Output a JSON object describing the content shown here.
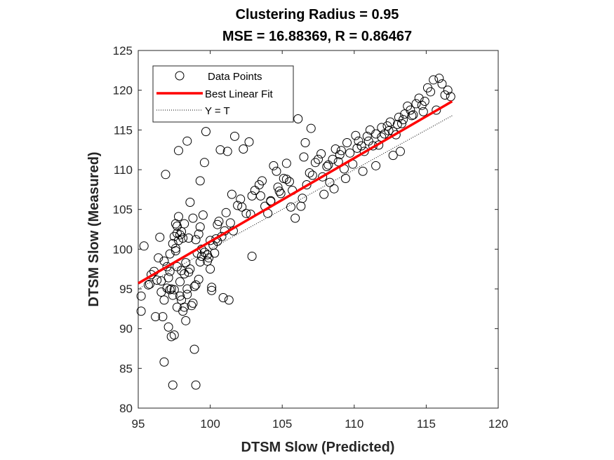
{
  "chart_data": {
    "type": "scatter",
    "title": "Clustering Radius = 0.95",
    "subtitle": "MSE = 16.88369, R = 0.86467",
    "xlabel": "DTSM Slow (Predicted)",
    "ylabel": "DTSM Slow (Measured)",
    "xlim": [
      95,
      120
    ],
    "ylim": [
      80,
      125
    ],
    "xticks": [
      95,
      100,
      105,
      110,
      115,
      120
    ],
    "yticks": [
      80,
      85,
      90,
      95,
      100,
      105,
      110,
      115,
      120,
      125
    ],
    "grid": false,
    "legend": {
      "placement": "top-left",
      "entries": [
        "Data Points",
        "Best Linear Fit",
        "Y = T"
      ]
    },
    "series": [
      {
        "name": "Data Points",
        "type": "scatter",
        "marker": "open-circle",
        "color": "#000000",
        "x": [
          95.2,
          95.2,
          95.4,
          95.7,
          95.9,
          96.1,
          96.2,
          96.4,
          96.5,
          96.6,
          96.6,
          96.7,
          96.8,
          96.8,
          96.9,
          97.0,
          97.0,
          97.1,
          97.1,
          97.2,
          97.2,
          97.3,
          97.3,
          97.4,
          97.4,
          97.4,
          97.5,
          97.5,
          97.5,
          97.6,
          97.6,
          97.7,
          97.7,
          97.7,
          97.8,
          97.8,
          97.8,
          97.9,
          97.9,
          98.0,
          98.0,
          98.0,
          98.1,
          98.1,
          98.2,
          98.2,
          98.2,
          98.3,
          98.3,
          98.4,
          98.4,
          98.5,
          98.5,
          98.6,
          98.7,
          98.8,
          98.9,
          99.0,
          99.0,
          99.1,
          99.2,
          99.3,
          99.3,
          99.4,
          99.4,
          99.5,
          99.6,
          99.7,
          99.8,
          99.9,
          100.0,
          100.1,
          100.2,
          100.3,
          100.4,
          100.5,
          100.6,
          100.7,
          100.8,
          100.9,
          101.0,
          101.1,
          101.2,
          101.4,
          101.5,
          101.7,
          101.9,
          102.1,
          102.3,
          102.5,
          102.7,
          102.9,
          103.1,
          103.4,
          103.6,
          103.8,
          104.0,
          104.2,
          104.4,
          104.7,
          104.9,
          105.1,
          105.3,
          105.5,
          105.7,
          105.9,
          106.1,
          106.3,
          106.5,
          106.7,
          106.9,
          107.1,
          107.3,
          107.5,
          107.7,
          107.9,
          108.1,
          108.3,
          108.5,
          108.7,
          108.9,
          109.1,
          109.3,
          109.5,
          109.7,
          109.9,
          110.1,
          110.3,
          110.5,
          110.7,
          110.9,
          111.1,
          111.3,
          111.5,
          111.7,
          111.9,
          112.1,
          112.3,
          112.5,
          112.7,
          112.9,
          113.1,
          113.3,
          113.5,
          113.7,
          113.9,
          114.1,
          114.3,
          114.5,
          114.7,
          114.9,
          115.1,
          115.3,
          115.5,
          115.7,
          115.9,
          116.1,
          116.3,
          116.5,
          116.7,
          100.0,
          101.3,
          100.1,
          102.2,
          102.9,
          104.8,
          104.2,
          105.3,
          107.0,
          106.6,
          99.8,
          99.3,
          98.6,
          97.6,
          98.4,
          97.9,
          97.7,
          99.2,
          99.0,
          98.8,
          108.2,
          109.0,
          110.2,
          111.0,
          111.9,
          112.4,
          113.0,
          113.4,
          114.0,
          114.8,
          110.6,
          111.5,
          112.7,
          113.2,
          109.4,
          108.6,
          107.8,
          106.4,
          105.6,
          104.6,
          103.5,
          102.8,
          101.6,
          100.5,
          99.6,
          98.9,
          97.2,
          96.8,
          96.3,
          95.8
        ],
        "y": [
          92.2,
          94.1,
          100.4,
          95.5,
          96.8,
          97.2,
          91.5,
          98.9,
          101.5,
          94.6,
          96.0,
          91.5,
          85.8,
          93.6,
          109.4,
          95.1,
          97.8,
          90.2,
          96.4,
          94.9,
          99.4,
          89.0,
          95.0,
          82.9,
          94.2,
          100.7,
          101.6,
          89.2,
          94.9,
          100.1,
          103.2,
          97.8,
          102.0,
          92.7,
          101.1,
          104.1,
          112.4,
          95.9,
          101.8,
          93.6,
          102.2,
          97.3,
          92.2,
          101.4,
          92.7,
          96.9,
          103.2,
          91.0,
          98.3,
          113.6,
          94.3,
          97.1,
          101.4,
          105.9,
          92.9,
          93.2,
          87.4,
          82.9,
          95.5,
          99.5,
          101.9,
          102.8,
          108.6,
          99.1,
          100.0,
          104.3,
          110.9,
          114.8,
          98.5,
          98.9,
          101.1,
          94.8,
          100.5,
          99.5,
          101.3,
          103.1,
          103.5,
          112.5,
          101.6,
          93.9,
          102.3,
          104.6,
          112.3,
          103.3,
          106.9,
          114.2,
          105.5,
          106.3,
          112.6,
          104.5,
          113.5,
          99.1,
          107.4,
          108.1,
          108.6,
          105.4,
          104.5,
          106.0,
          110.5,
          107.8,
          107.0,
          108.9,
          110.8,
          108.5,
          107.4,
          103.9,
          116.4,
          105.4,
          111.6,
          108.1,
          109.6,
          109.3,
          110.9,
          111.3,
          112.0,
          106.9,
          110.4,
          108.4,
          111.3,
          112.6,
          111.0,
          112.4,
          110.1,
          113.4,
          112.1,
          110.7,
          114.3,
          113.6,
          113.0,
          112.3,
          114.2,
          115.0,
          113.0,
          114.5,
          113.1,
          115.3,
          114.5,
          115.5,
          116.0,
          114.8,
          114.4,
          116.6,
          115.8,
          117.0,
          118.0,
          117.5,
          116.9,
          118.3,
          119.0,
          118.1,
          118.6,
          120.3,
          119.8,
          121.3,
          117.5,
          121.5,
          120.8,
          119.4,
          120.0,
          119.2,
          97.5,
          93.6,
          95.2,
          105.3,
          106.7,
          107.3,
          106.1,
          108.8,
          115.2,
          113.4,
          99.3,
          98.4,
          97.5,
          99.8,
          95.0,
          94.1,
          102.9,
          96.2,
          101.2,
          103.9,
          110.6,
          111.9,
          112.7,
          113.6,
          114.1,
          114.9,
          115.7,
          116.3,
          116.8,
          117.3,
          109.8,
          110.5,
          111.8,
          112.3,
          108.9,
          107.6,
          109.1,
          106.4,
          105.3,
          109.8,
          106.7,
          104.4,
          102.3,
          101.0,
          99.6,
          95.3,
          97.2,
          98.5,
          96.1,
          95.6
        ]
      },
      {
        "name": "Best Linear Fit",
        "type": "line",
        "color": "#ff0000",
        "x": [
          95.0,
          116.8
        ],
        "y": [
          95.7,
          118.6
        ]
      },
      {
        "name": "Y = T",
        "type": "line",
        "style": "dotted",
        "color": "#000000",
        "x": [
          95.0,
          116.8
        ],
        "y": [
          95.0,
          116.8
        ]
      }
    ]
  }
}
